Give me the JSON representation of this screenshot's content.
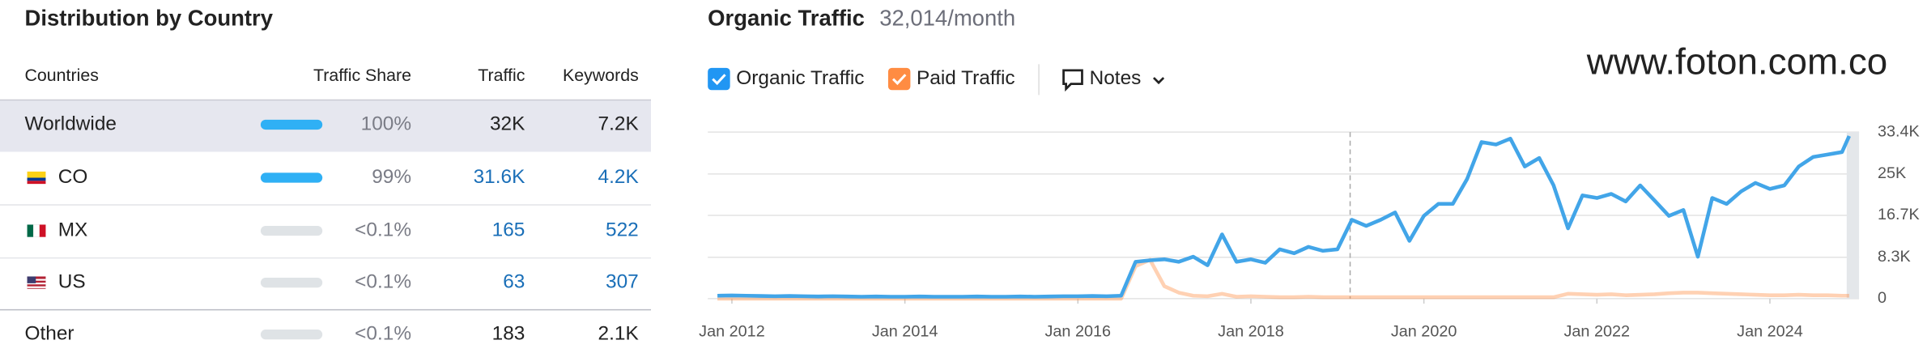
{
  "table": {
    "title": "Distribution by Country",
    "columns": [
      "Countries",
      "Traffic Share",
      "Traffic",
      "Keywords"
    ],
    "rows": [
      [
        "Worldwide",
        "100%",
        "32K",
        "7.2K"
      ],
      [
        "CO",
        "99%",
        "31.6K",
        "4.2K"
      ],
      [
        "MX",
        "<0.1%",
        "165",
        "522"
      ],
      [
        "US",
        "<0.1%",
        "63",
        "307"
      ],
      [
        "Other",
        "<0.1%",
        "183",
        "2.1K"
      ]
    ]
  },
  "watermark": "www.foton.com.co",
  "notes": "Notes",
  "chart_data": {
    "type": "line",
    "title": "Organic Traffic",
    "subtitle": "32,014/month",
    "x": [
      "2011-11",
      "2012-01",
      "2012-03",
      "2012-05",
      "2012-07",
      "2012-09",
      "2012-11",
      "2013-01",
      "2013-03",
      "2013-05",
      "2013-07",
      "2013-09",
      "2013-11",
      "2014-01",
      "2014-03",
      "2014-05",
      "2014-07",
      "2014-09",
      "2014-11",
      "2015-01",
      "2015-03",
      "2015-05",
      "2015-07",
      "2015-09",
      "2015-11",
      "2016-01",
      "2016-03",
      "2016-05",
      "2016-07",
      "2016-09",
      "2016-11",
      "2017-01",
      "2017-03",
      "2017-05",
      "2017-07",
      "2017-09",
      "2017-11",
      "2018-01",
      "2018-03",
      "2018-05",
      "2018-07",
      "2018-09",
      "2018-11",
      "2019-01",
      "2019-03",
      "2019-05",
      "2019-07",
      "2019-09",
      "2019-11",
      "2020-01",
      "2020-03",
      "2020-05",
      "2020-07",
      "2020-09",
      "2020-11",
      "2021-01",
      "2021-03",
      "2021-05",
      "2021-07",
      "2021-09",
      "2021-11",
      "2022-01",
      "2022-03",
      "2022-05",
      "2022-07",
      "2022-09",
      "2022-11",
      "2023-01",
      "2023-03",
      "2023-05",
      "2023-07",
      "2023-09",
      "2023-11",
      "2024-01",
      "2024-03",
      "2024-05",
      "2024-07",
      "2024-09",
      "2024-11",
      "2024-12"
    ],
    "series": [
      {
        "name": "Organic Traffic",
        "color": "#42a5e8",
        "values": [
          600,
          650,
          600,
          550,
          500,
          550,
          500,
          450,
          500,
          450,
          400,
          450,
          400,
          400,
          450,
          400,
          400,
          400,
          450,
          400,
          400,
          450,
          400,
          450,
          500,
          500,
          550,
          500,
          600,
          7400,
          7700,
          7900,
          7400,
          8400,
          6700,
          12900,
          7400,
          7900,
          7200,
          9900,
          9100,
          10400,
          9600,
          9900,
          15800,
          14600,
          15800,
          17300,
          11600,
          16600,
          19000,
          19000,
          24000,
          31400,
          30900,
          32100,
          26500,
          28200,
          22700,
          14100,
          20700,
          20200,
          21000,
          19500,
          22700,
          19700,
          16600,
          17800,
          8400,
          20200,
          19000,
          21500,
          23200,
          22000,
          22700,
          26500,
          28400,
          28900,
          29400,
          32600
        ]
      },
      {
        "name": "Paid Traffic",
        "color": "#ff8c42",
        "values": [
          0,
          0,
          0,
          0,
          0,
          0,
          0,
          0,
          0,
          0,
          0,
          0,
          0,
          0,
          0,
          0,
          0,
          0,
          0,
          0,
          0,
          0,
          0,
          0,
          0,
          0,
          0,
          0,
          0,
          6500,
          7800,
          2500,
          1200,
          600,
          500,
          1000,
          400,
          500,
          400,
          300,
          300,
          400,
          300,
          300,
          300,
          300,
          300,
          300,
          300,
          300,
          300,
          300,
          300,
          300,
          300,
          300,
          300,
          300,
          300,
          1000,
          900,
          800,
          900,
          700,
          800,
          900,
          1100,
          1200,
          1200,
          1100,
          1000,
          900,
          800,
          700,
          700,
          800,
          700,
          700,
          600,
          600
        ]
      }
    ],
    "xlim": [
      "2011-10",
      "2024-12"
    ],
    "xticks": [
      {
        "value": "2012-01",
        "label": "Jan 2012"
      },
      {
        "value": "2014-01",
        "label": "Jan 2014"
      },
      {
        "value": "2016-01",
        "label": "Jan 2016"
      },
      {
        "value": "2018-01",
        "label": "Jan 2018"
      },
      {
        "value": "2020-01",
        "label": "Jan 2020"
      },
      {
        "value": "2022-01",
        "label": "Jan 2022"
      },
      {
        "value": "2024-01",
        "label": "Jan 2024"
      }
    ],
    "ylim": [
      0,
      33400
    ],
    "yticks": [
      0,
      {
        "value": 8300,
        "label": "8.3K"
      },
      {
        "value": 16700,
        "label": "16.7K"
      },
      {
        "value": 25000,
        "label": "25K"
      },
      {
        "value": 33400,
        "label": "33.4K"
      }
    ],
    "grid": true
  }
}
